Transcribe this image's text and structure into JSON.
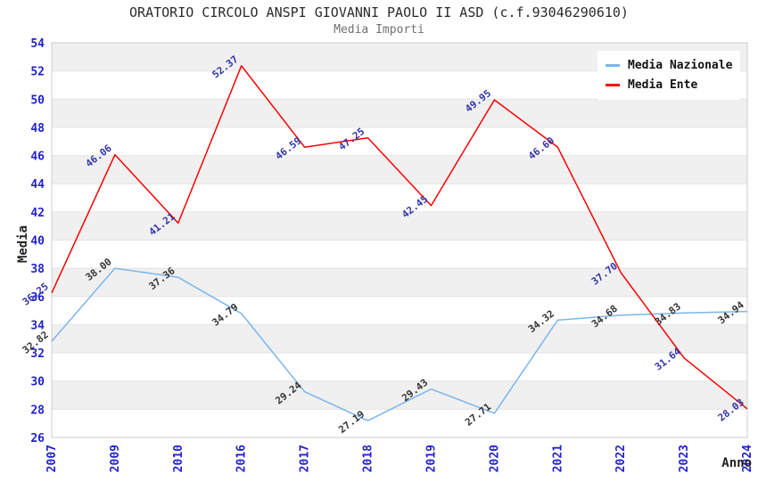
{
  "chart_data": {
    "type": "line",
    "title": "ORATORIO CIRCOLO ANSPI GIOVANNI PAOLO II ASD (c.f.93046290610)",
    "subtitle": "Media Importi",
    "xlabel": "Anno",
    "ylabel": "Media",
    "ylim": [
      26,
      54
    ],
    "ytick_step": 2,
    "grid": true,
    "legend_position": "top-right",
    "band_color": "#f0f0f0",
    "grid_color": "#e4e4e4",
    "border_color": "#cccccc",
    "tick_label_color": "#2222cc",
    "categories": [
      "2007",
      "2009",
      "2010",
      "2016",
      "2017",
      "2018",
      "2019",
      "2020",
      "2021",
      "2022",
      "2023",
      "2024"
    ],
    "series": [
      {
        "name": "Media Nazionale",
        "color": "#7cb5ec",
        "label_color": "#333333",
        "values": [
          32.82,
          38.0,
          37.36,
          34.79,
          29.24,
          27.19,
          29.43,
          27.71,
          34.32,
          34.68,
          34.83,
          34.94
        ]
      },
      {
        "name": "Media Ente",
        "color": "#ff0000",
        "label_color": "#3333aa",
        "values": [
          36.25,
          46.06,
          41.21,
          52.37,
          46.59,
          47.25,
          42.45,
          49.95,
          46.6,
          37.7,
          31.64,
          28.03
        ]
      }
    ]
  }
}
